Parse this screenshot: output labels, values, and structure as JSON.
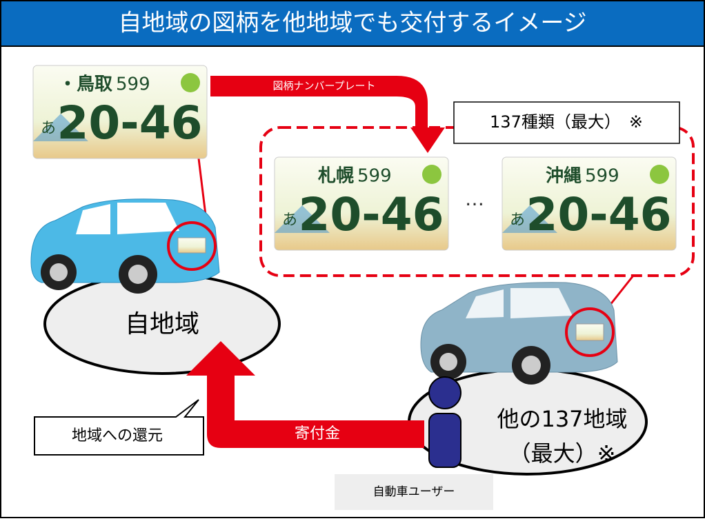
{
  "header": {
    "title": "自地域の図柄を他地域でも交付するイメージ"
  },
  "plates": [
    {
      "region": "・鳥取",
      "class": "599",
      "prefix": "あ",
      "number": "20-46"
    },
    {
      "region": "札幌",
      "class": "599",
      "prefix": "あ",
      "number": "20-46"
    },
    {
      "region": "沖縄",
      "class": "599",
      "prefix": "あ",
      "number": "20-46"
    }
  ],
  "ellipsis": "…",
  "arrows": {
    "top": "図柄ナンバープレート",
    "bottom": "寄付金"
  },
  "callouts": {
    "types": "137種類（最大）　※",
    "return": "地域への還元"
  },
  "regions": {
    "home": "自地域",
    "other": [
      "他の137地域",
      "（最大）※"
    ]
  },
  "user": "自動車ユーザー"
}
